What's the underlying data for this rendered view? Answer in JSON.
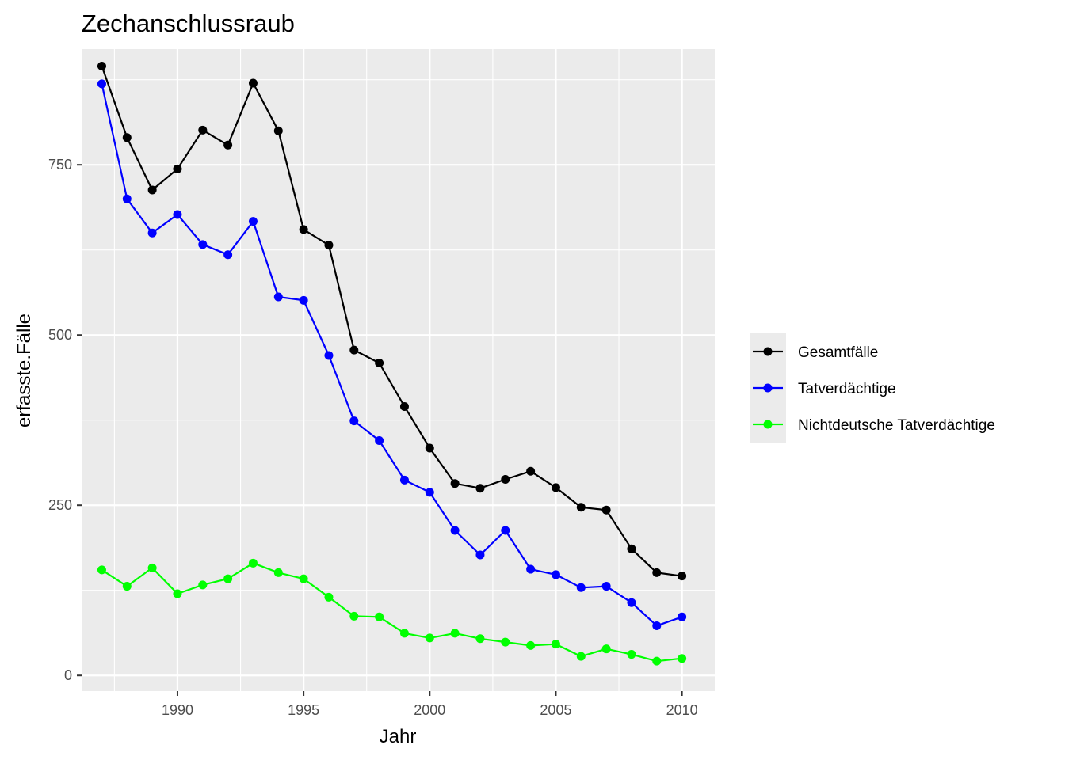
{
  "chart_data": {
    "type": "line",
    "title": "Zechanschlussraub",
    "xlabel": "Jahr",
    "ylabel": "erfasste.Fälle",
    "x": [
      1987,
      1988,
      1989,
      1990,
      1991,
      1992,
      1993,
      1994,
      1995,
      1996,
      1997,
      1998,
      1999,
      2000,
      2001,
      2002,
      2003,
      2004,
      2005,
      2006,
      2007,
      2008,
      2009,
      2010
    ],
    "xlim": [
      1986.2,
      2011.3
    ],
    "ylim": [
      -23,
      920
    ],
    "x_ticks": [
      1990,
      1995,
      2000,
      2005,
      2010
    ],
    "x_tick_labels": [
      "1990",
      "1995",
      "2000",
      "2005",
      "2010"
    ],
    "y_ticks": [
      0,
      250,
      500,
      750
    ],
    "y_tick_labels": [
      "0",
      "250",
      "500",
      "750"
    ],
    "grid": true,
    "legend_position": "right",
    "series": [
      {
        "name": "Gesamtfälle",
        "color": "#000000",
        "values": [
          895,
          790,
          713,
          744,
          801,
          779,
          870,
          800,
          655,
          632,
          478,
          459,
          395,
          334,
          282,
          275,
          288,
          300,
          276,
          247,
          243,
          186,
          151,
          146
        ]
      },
      {
        "name": "Tatverdächtige",
        "color": "#0000ff",
        "values": [
          869,
          700,
          650,
          677,
          633,
          618,
          667,
          556,
          551,
          470,
          374,
          345,
          287,
          269,
          213,
          177,
          213,
          156,
          148,
          129,
          131,
          107,
          73,
          86
        ]
      },
      {
        "name": "Nichtdeutsche Tatverdächtige",
        "color": "#00ff00",
        "values": [
          155,
          131,
          158,
          120,
          133,
          142,
          165,
          151,
          142,
          115,
          87,
          86,
          62,
          55,
          62,
          54,
          49,
          44,
          46,
          28,
          39,
          31,
          21,
          25
        ]
      }
    ]
  }
}
